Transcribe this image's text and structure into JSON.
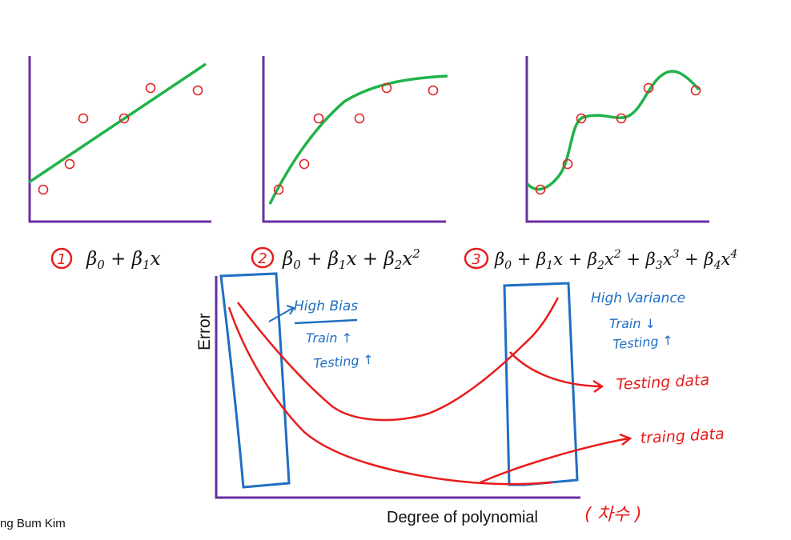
{
  "colors": {
    "axis": "#6a2fa3",
    "fit": "#21b34a",
    "points": "#e02424",
    "annotation_red": "#e81c1c",
    "annotation_blue": "#1f6fc2"
  },
  "plots": [
    {
      "label_number": "1",
      "formula": "β0 + β1x",
      "fit": "linear"
    },
    {
      "label_number": "2",
      "formula": "β0 + β1x + β2x2",
      "fit": "quadratic"
    },
    {
      "label_number": "3",
      "formula": "β0 + β1x + β2x2 + β3x3 + β4x4",
      "fit": "quartic"
    }
  ],
  "error_chart": {
    "ylabel": "Error",
    "xlabel": "Degree of polynomial",
    "xlabel_note": "( 차수 )",
    "left_note": {
      "title": "High Bias",
      "line1": "Train ↑",
      "line2": "Testing ↑"
    },
    "right_note": {
      "title": "High Variance",
      "line1": "Train ↓",
      "line2": "Testing ↑"
    },
    "testing_label": "Testing data",
    "training_label": "traing data"
  },
  "author": "ng Bum Kim"
}
